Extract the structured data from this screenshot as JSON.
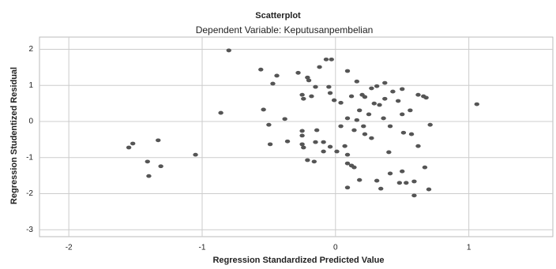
{
  "chart_data": {
    "type": "scatter",
    "title": "Scatterplot",
    "subtitle": "Dependent Variable: Keputusanpembelian",
    "xlabel": "Regression Standardized Predicted Value",
    "ylabel": "Regression Studentized Residual",
    "xlim": [
      -2.22,
      1.63
    ],
    "xticks": [
      -2,
      -1,
      0,
      1
    ],
    "ylim": [
      -3.19,
      2.34
    ],
    "yticks": [
      2,
      1,
      0,
      -1,
      -2,
      -3
    ],
    "grid": true,
    "color": "#555555",
    "x": [
      -1.55,
      -1.52,
      -1.33,
      -1.41,
      -1.4,
      -1.31,
      -1.05,
      -0.86,
      -0.8,
      -0.56,
      -0.44,
      -0.47,
      -0.54,
      -0.5,
      -0.49,
      -0.38,
      -0.28,
      -0.21,
      -0.2,
      -0.25,
      -0.15,
      -0.24,
      -0.18,
      -0.25,
      -0.25,
      -0.25,
      -0.24,
      -0.36,
      -0.14,
      -0.15,
      -0.21,
      -0.16,
      -0.07,
      -0.03,
      -0.12,
      -0.05,
      -0.04,
      -0.01,
      0.04,
      0.09,
      0.16,
      0.2,
      0.12,
      0.22,
      0.27,
      0.31,
      0.37,
      0.43,
      0.5,
      0.47,
      0.37,
      0.33,
      0.29,
      0.18,
      0.25,
      0.16,
      0.09,
      0.04,
      0.14,
      0.22,
      0.36,
      0.41,
      0.56,
      0.71,
      0.62,
      0.66,
      0.68,
      0.5,
      0.51,
      0.57,
      0.62,
      0.07,
      0.09,
      0.01,
      -0.04,
      -0.09,
      0.09,
      0.12,
      0.14,
      0.09,
      0.18,
      0.31,
      0.34,
      0.4,
      0.41,
      0.5,
      0.53,
      0.59,
      0.67,
      0.7,
      0.59,
      0.48,
      1.06,
      0.21,
      0.27,
      -0.09
    ],
    "values": [
      -0.72,
      -0.61,
      -0.52,
      -1.11,
      -1.51,
      -1.24,
      -0.92,
      0.24,
      1.97,
      1.44,
      1.27,
      1.05,
      0.33,
      -0.09,
      -0.63,
      0.07,
      1.35,
      1.22,
      1.14,
      0.74,
      0.96,
      0.63,
      0.7,
      -0.26,
      -0.39,
      -0.63,
      -0.72,
      -0.55,
      -0.24,
      -0.57,
      -1.07,
      -1.11,
      1.72,
      1.72,
      1.51,
      0.96,
      0.79,
      0.59,
      0.52,
      1.4,
      1.11,
      0.74,
      0.7,
      0.68,
      0.92,
      0.98,
      1.07,
      0.83,
      0.9,
      0.57,
      0.63,
      0.46,
      0.5,
      0.31,
      0.2,
      0.04,
      0.09,
      -0.13,
      -0.24,
      -0.35,
      0.09,
      -0.13,
      0.31,
      -0.09,
      0.74,
      0.7,
      0.66,
      0.2,
      -0.31,
      -0.35,
      -0.68,
      -0.68,
      -0.92,
      -0.83,
      -0.7,
      -0.83,
      -1.16,
      -1.22,
      -1.27,
      -1.83,
      -1.62,
      -1.64,
      -1.86,
      -0.85,
      -1.44,
      -1.38,
      -1.7,
      -1.66,
      -1.27,
      -1.88,
      -2.05,
      -1.7,
      0.48,
      -0.13,
      -0.46,
      -0.57
    ]
  }
}
